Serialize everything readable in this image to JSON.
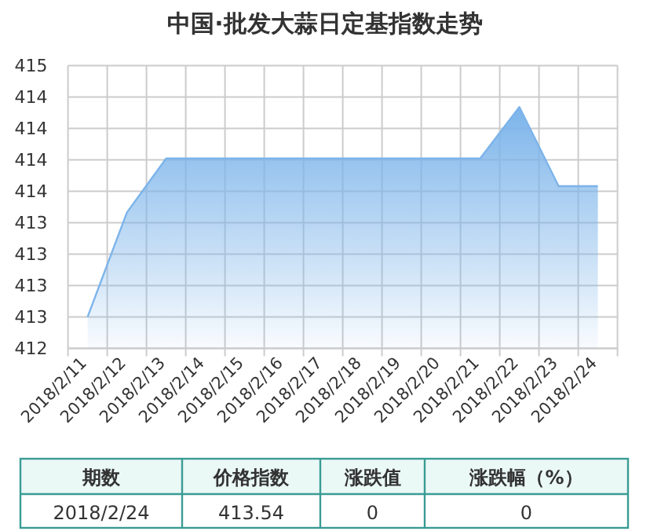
{
  "chart_data": [
    {
      "type": "area",
      "title": "中国·批发大蒜日定基指数走势",
      "categories": [
        "2018/2/11",
        "2018/2/12",
        "2018/2/13",
        "2018/2/14",
        "2018/2/15",
        "2018/2/16",
        "2018/2/17",
        "2018/2/18",
        "2018/2/19",
        "2018/2/20",
        "2018/2/21",
        "2018/2/22",
        "2018/2/23",
        "2018/2/24"
      ],
      "series": [
        {
          "color": "#7cb4ea",
          "values": [
            412.5,
            413.33,
            413.76,
            413.76,
            413.76,
            413.76,
            413.76,
            413.76,
            413.76,
            413.76,
            413.76,
            414.17,
            413.54,
            413.54
          ]
        }
      ],
      "ylim": [
        412.25,
        414.5
      ],
      "yticks": [
        {
          "value": 412.25,
          "label": "412"
        },
        {
          "value": 412.5,
          "label": "413"
        },
        {
          "value": 412.75,
          "label": "413"
        },
        {
          "value": 413,
          "label": "413"
        },
        {
          "value": 413.25,
          "label": "413"
        },
        {
          "value": 413.5,
          "label": "414"
        },
        {
          "value": 413.75,
          "label": "414"
        },
        {
          "value": 414,
          "label": "414"
        },
        {
          "value": 414.25,
          "label": "414"
        },
        {
          "value": 414.5,
          "label": "415"
        }
      ],
      "grid": true
    },
    {
      "type": "other",
      "categories": [
        "期数",
        "价格指数",
        "涨跌值",
        "涨跌幅（%）"
      ],
      "annotations": [
        "2018/2/24",
        "413.54",
        "0",
        "0"
      ]
    }
  ]
}
